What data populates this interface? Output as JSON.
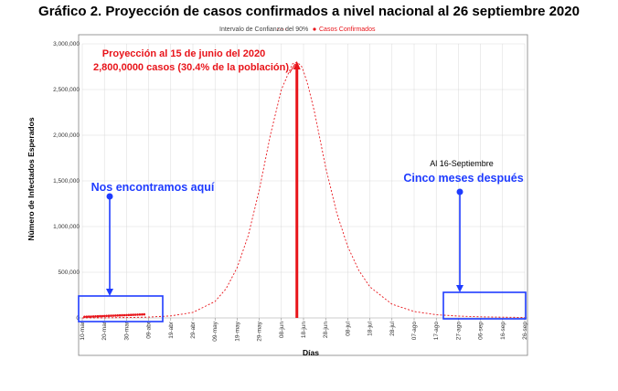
{
  "chart_data": {
    "type": "line",
    "title": "Gráfico 2. Proyección de casos confirmados a nivel nacional al 26 septiembre 2020",
    "xlabel": "Días",
    "ylabel": "Número de Infectados Esperados",
    "ylim": [
      0,
      3000000
    ],
    "y_ticks": [
      "0",
      "500,000",
      "1,000,000",
      "1,500,000",
      "2,000,000",
      "2,500,000",
      "3,000,000"
    ],
    "x_ticks": [
      "10-mar",
      "20-mar",
      "30-mar",
      "09-abr",
      "19-abr",
      "29-abr",
      "09-may",
      "19-may",
      "29-may",
      "08-jun",
      "18-jun",
      "28-jun",
      "08-jul",
      "18-jul",
      "28-jul",
      "07-ago",
      "17-ago",
      "27-ago",
      "06-sep",
      "16-sep",
      "26-sep"
    ],
    "x_tick_days": [
      0,
      10,
      20,
      30,
      40,
      50,
      60,
      70,
      80,
      90,
      100,
      110,
      120,
      130,
      140,
      150,
      160,
      170,
      180,
      190,
      200
    ],
    "grid": true,
    "legend_position": "top",
    "series": [
      {
        "name": "Intervalo de Confianza del 90%",
        "style": "dashed",
        "color": "#e8141a",
        "x": [
          0,
          10,
          20,
          30,
          40,
          50,
          60,
          65,
          70,
          75,
          80,
          85,
          90,
          95,
          97,
          99,
          100,
          102,
          105,
          110,
          115,
          120,
          125,
          130,
          140,
          150,
          160,
          170,
          180,
          190,
          200
        ],
        "y": [
          300,
          1200,
          4000,
          9000,
          22000,
          60000,
          180000,
          320000,
          550000,
          900000,
          1400000,
          2000000,
          2500000,
          2780000,
          2800000,
          2760000,
          2700000,
          2550000,
          2250000,
          1650000,
          1150000,
          780000,
          520000,
          340000,
          150000,
          70000,
          35000,
          20000,
          12000,
          8000,
          5000
        ]
      },
      {
        "name": "Casos Confirmados",
        "style": "points",
        "color": "#e8141a",
        "x": [
          1,
          2,
          3,
          4,
          5,
          6,
          7,
          8,
          9,
          10,
          11,
          12,
          13,
          14,
          15,
          16,
          17,
          18,
          19,
          20,
          21,
          22,
          23,
          24,
          25,
          26,
          27,
          28
        ],
        "y": [
          2000,
          3000,
          4000,
          5000,
          6000,
          7000,
          8000,
          9000,
          10000,
          11000,
          12000,
          13000,
          14000,
          15000,
          16000,
          17000,
          18000,
          19000,
          20000,
          21000,
          22000,
          23000,
          24000,
          25000,
          26000,
          27000,
          28000,
          29000
        ]
      }
    ],
    "peak_day": 97,
    "annotations": {
      "peak_line1": "Proyección al 15 de junio del 2020",
      "peak_line2": "2,800,0000 casos (30.4% de la población)",
      "here_label": "Nos encontramos aquí",
      "sept_small": "Al 16-Septiembre",
      "sept_big": "Cinco meses después"
    },
    "colors": {
      "series": "#e8141a",
      "annotation_blue": "#1f3cff",
      "grid": "#d9d9d9"
    }
  }
}
